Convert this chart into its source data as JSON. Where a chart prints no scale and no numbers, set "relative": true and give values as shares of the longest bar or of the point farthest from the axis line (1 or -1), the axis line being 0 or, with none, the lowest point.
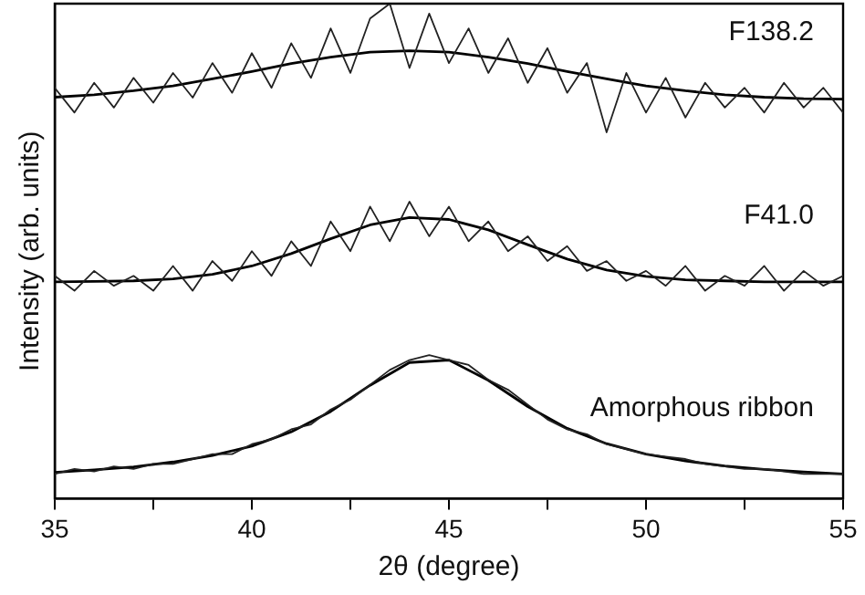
{
  "chart_data": {
    "type": "line",
    "relative": true,
    "xlabel": "2θ (degree)",
    "ylabel": "Intensity (arb. units)",
    "xlim": [
      35,
      55
    ],
    "xticks": [
      35,
      {
        "value": 37.5,
        "label": null
      },
      40,
      {
        "value": 42.5,
        "label": null
      },
      45,
      {
        "value": 47.5,
        "label": null
      },
      50,
      {
        "value": 52.5,
        "label": null
      },
      55
    ],
    "grid": false,
    "legend": false,
    "marker": "none",
    "line_style": "solid",
    "series": [
      {
        "name": "F138.2",
        "color": "#222222",
        "x": [
          35,
          35.5,
          36,
          36.5,
          37,
          37.5,
          38,
          38.5,
          39,
          39.5,
          40,
          40.5,
          41,
          41.5,
          42,
          42.5,
          43,
          43.5,
          44,
          44.5,
          45,
          45.5,
          46,
          46.5,
          47,
          47.5,
          48,
          48.5,
          49,
          49.5,
          50,
          50.5,
          51,
          51.5,
          52,
          52.5,
          53,
          53.5,
          54,
          54.5,
          55
        ],
        "values": [
          0.83,
          0.78,
          0.84,
          0.79,
          0.85,
          0.8,
          0.86,
          0.81,
          0.88,
          0.82,
          0.9,
          0.83,
          0.92,
          0.85,
          0.95,
          0.86,
          0.97,
          1.0,
          0.87,
          0.98,
          0.88,
          0.95,
          0.86,
          0.93,
          0.84,
          0.91,
          0.82,
          0.88,
          0.74,
          0.86,
          0.78,
          0.85,
          0.77,
          0.84,
          0.79,
          0.83,
          0.78,
          0.84,
          0.79,
          0.83,
          0.78
        ]
      },
      {
        "color": "#000000",
        "x": [
          35,
          36,
          37,
          38,
          39,
          40,
          41,
          42,
          43,
          44,
          45,
          46,
          47,
          48,
          49,
          50,
          51,
          52,
          53,
          54,
          55
        ],
        "values": [
          0.811,
          0.816,
          0.824,
          0.834,
          0.848,
          0.863,
          0.879,
          0.892,
          0.902,
          0.905,
          0.902,
          0.892,
          0.879,
          0.863,
          0.848,
          0.834,
          0.824,
          0.816,
          0.811,
          0.808,
          0.807
        ]
      },
      {
        "name": "F41.0",
        "color": "#222222",
        "x": [
          35,
          35.5,
          36,
          36.5,
          37,
          37.5,
          38,
          38.5,
          39,
          39.5,
          40,
          40.5,
          41,
          41.5,
          42,
          42.5,
          43,
          43.5,
          44,
          44.5,
          45,
          45.5,
          46,
          46.5,
          47,
          47.5,
          48,
          48.5,
          49,
          49.5,
          50,
          50.5,
          51,
          51.5,
          52,
          52.5,
          53,
          53.5,
          54,
          54.5,
          55
        ],
        "values": [
          0.45,
          0.42,
          0.46,
          0.43,
          0.45,
          0.42,
          0.47,
          0.42,
          0.48,
          0.44,
          0.5,
          0.45,
          0.52,
          0.47,
          0.56,
          0.5,
          0.59,
          0.52,
          0.6,
          0.53,
          0.59,
          0.52,
          0.56,
          0.5,
          0.53,
          0.48,
          0.51,
          0.46,
          0.48,
          0.44,
          0.46,
          0.43,
          0.47,
          0.42,
          0.45,
          0.43,
          0.47,
          0.42,
          0.46,
          0.43,
          0.45
        ]
      },
      {
        "color": "#000000",
        "x": [
          35,
          36,
          37,
          38,
          39,
          40,
          41,
          42,
          43,
          44,
          45,
          46,
          47,
          48,
          49,
          50,
          51,
          52,
          53,
          54,
          55
        ],
        "values": [
          0.438,
          0.439,
          0.44,
          0.444,
          0.453,
          0.47,
          0.495,
          0.525,
          0.553,
          0.568,
          0.564,
          0.543,
          0.513,
          0.484,
          0.462,
          0.449,
          0.442,
          0.44,
          0.438,
          0.438,
          0.438
        ]
      },
      {
        "name": "Amorphous ribbon",
        "color": "#222222",
        "x": [
          35,
          35.5,
          36,
          36.5,
          37,
          37.5,
          38,
          38.5,
          39,
          39.5,
          40,
          40.5,
          41,
          41.5,
          42,
          42.5,
          43,
          43.5,
          44,
          44.5,
          45,
          45.5,
          46,
          46.5,
          47,
          47.5,
          48,
          48.5,
          49,
          49.5,
          50,
          50.5,
          51,
          51.5,
          52,
          52.5,
          53,
          53.5,
          54,
          54.5,
          55
        ],
        "values": [
          0.05,
          0.06,
          0.055,
          0.065,
          0.06,
          0.07,
          0.07,
          0.08,
          0.09,
          0.09,
          0.11,
          0.12,
          0.14,
          0.15,
          0.18,
          0.2,
          0.23,
          0.26,
          0.28,
          0.29,
          0.28,
          0.27,
          0.24,
          0.22,
          0.19,
          0.16,
          0.14,
          0.13,
          0.11,
          0.1,
          0.09,
          0.085,
          0.08,
          0.07,
          0.065,
          0.06,
          0.06,
          0.055,
          0.05,
          0.05,
          0.05
        ]
      },
      {
        "color": "#000000",
        "x": [
          35,
          36,
          37,
          38,
          39,
          40,
          41,
          42,
          43,
          44,
          45,
          46,
          47,
          48,
          49,
          50,
          51,
          52,
          53,
          54,
          55
        ],
        "values": [
          0.053,
          0.058,
          0.064,
          0.074,
          0.087,
          0.106,
          0.135,
          0.176,
          0.229,
          0.275,
          0.28,
          0.239,
          0.186,
          0.142,
          0.111,
          0.09,
          0.076,
          0.066,
          0.059,
          0.054,
          0.05
        ]
      }
    ]
  }
}
